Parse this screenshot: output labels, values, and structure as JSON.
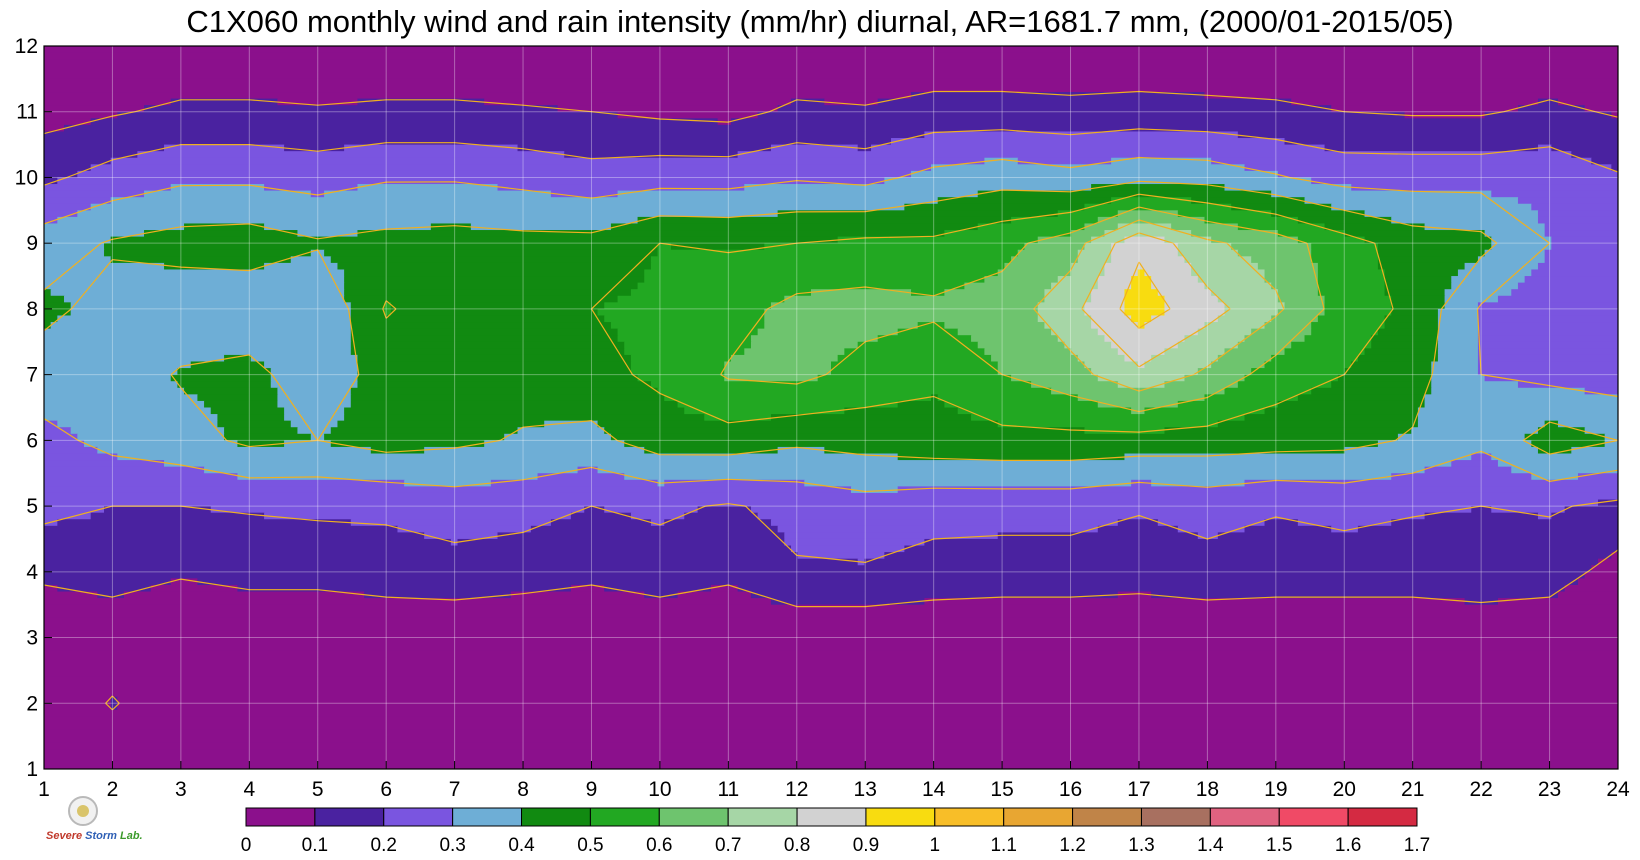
{
  "chart_data": {
    "type": "heatmap",
    "title": "C1X060 monthly wind and rain intensity (mm/hr) diurnal, AR=1681.7 mm, (2000/01-2015/05)",
    "x_ticks": [
      "1",
      "2",
      "3",
      "4",
      "5",
      "6",
      "7",
      "8",
      "9",
      "10",
      "11",
      "12",
      "13",
      "14",
      "15",
      "16",
      "17",
      "18",
      "19",
      "20",
      "21",
      "22",
      "23",
      "24"
    ],
    "y_ticks": [
      "1",
      "2",
      "3",
      "4",
      "5",
      "6",
      "7",
      "8",
      "9",
      "10",
      "11",
      "12"
    ],
    "xlim": [
      1,
      24
    ],
    "ylim": [
      1,
      12
    ],
    "grid": true,
    "contour_levels": [
      0,
      0.1,
      0.2,
      0.3,
      0.4,
      0.5,
      0.6,
      0.7,
      0.8,
      0.9,
      1,
      1.1,
      1.2,
      1.3,
      1.4,
      1.5,
      1.6,
      1.7
    ],
    "colorbar_labels": [
      "0",
      "0.1",
      "0.2",
      "0.3",
      "0.4",
      "0.5",
      "0.6",
      "0.7",
      "0.8",
      "0.9",
      "1",
      "1.1",
      "1.2",
      "1.3",
      "1.4",
      "1.5",
      "1.6",
      "1.7"
    ],
    "colorbar_colors": [
      "#8b108c",
      "#4a22a0",
      "#7a55e0",
      "#6eaed6",
      "#118a11",
      "#22a822",
      "#6ec46e",
      "#a6d6a6",
      "#d2d2d2",
      "#f8dc10",
      "#f8be28",
      "#e8a632",
      "#c08448",
      "#a87060",
      "#e06280",
      "#f04a66",
      "#d42a42"
    ],
    "contour_line_color": "#f0b020",
    "values": [
      [
        0.01,
        0.01,
        0.01,
        0.01,
        0.01,
        0.01,
        0.01,
        0.01,
        0.01,
        0.01,
        0.01,
        0.01,
        0.01,
        0.01,
        0.01,
        0.01,
        0.01,
        0.01,
        0.01,
        0.01,
        0.01,
        0.01,
        0.01,
        0.01
      ],
      [
        0.01,
        0.11,
        0.01,
        0.01,
        0.01,
        0.01,
        0.01,
        0.01,
        0.01,
        0.01,
        0.01,
        0.01,
        0.01,
        0.01,
        0.01,
        0.01,
        0.01,
        0.01,
        0.01,
        0.01,
        0.01,
        0.01,
        0.01,
        0.01
      ],
      [
        0.02,
        0.02,
        0.02,
        0.02,
        0.02,
        0.02,
        0.02,
        0.02,
        0.02,
        0.02,
        0.02,
        0.02,
        0.02,
        0.02,
        0.02,
        0.02,
        0.02,
        0.02,
        0.02,
        0.02,
        0.02,
        0.02,
        0.02,
        0.02
      ],
      [
        0.12,
        0.15,
        0.11,
        0.13,
        0.13,
        0.15,
        0.16,
        0.14,
        0.12,
        0.15,
        0.12,
        0.19,
        0.19,
        0.16,
        0.15,
        0.15,
        0.14,
        0.16,
        0.15,
        0.15,
        0.15,
        0.17,
        0.15,
        0.06
      ],
      [
        0.23,
        0.2,
        0.2,
        0.21,
        0.22,
        0.22,
        0.25,
        0.24,
        0.2,
        0.22,
        0.19,
        0.23,
        0.26,
        0.24,
        0.24,
        0.24,
        0.21,
        0.24,
        0.21,
        0.23,
        0.21,
        0.2,
        0.21,
        0.18
      ],
      [
        0.27,
        0.33,
        0.36,
        0.42,
        0.4,
        0.44,
        0.42,
        0.39,
        0.37,
        0.45,
        0.46,
        0.42,
        0.44,
        0.46,
        0.47,
        0.47,
        0.46,
        0.45,
        0.44,
        0.43,
        0.39,
        0.32,
        0.45,
        0.4
      ],
      [
        0.36,
        0.34,
        0.41,
        0.43,
        0.34,
        0.44,
        0.48,
        0.44,
        0.47,
        0.52,
        0.61,
        0.63,
        0.56,
        0.52,
        0.6,
        0.66,
        0.78,
        0.68,
        0.55,
        0.5,
        0.44,
        0.3,
        0.27,
        0.25
      ],
      [
        0.42,
        0.37,
        0.33,
        0.33,
        0.31,
        0.51,
        0.44,
        0.47,
        0.5,
        0.52,
        0.56,
        0.63,
        0.64,
        0.62,
        0.64,
        0.77,
        0.95,
        0.84,
        0.72,
        0.55,
        0.48,
        0.29,
        0.25,
        0.24
      ],
      [
        0.35,
        0.41,
        0.44,
        0.45,
        0.41,
        0.43,
        0.44,
        0.43,
        0.43,
        0.5,
        0.49,
        0.5,
        0.52,
        0.52,
        0.57,
        0.65,
        0.88,
        0.72,
        0.65,
        0.54,
        0.45,
        0.43,
        0.3,
        0.29
      ],
      [
        0.18,
        0.24,
        0.28,
        0.28,
        0.26,
        0.29,
        0.29,
        0.27,
        0.24,
        0.26,
        0.26,
        0.29,
        0.27,
        0.33,
        0.36,
        0.33,
        0.37,
        0.36,
        0.31,
        0.26,
        0.26,
        0.26,
        0.27,
        0.21
      ],
      [
        0.06,
        0.09,
        0.12,
        0.12,
        0.11,
        0.12,
        0.12,
        0.11,
        0.1,
        0.08,
        0.07,
        0.12,
        0.11,
        0.14,
        0.14,
        0.13,
        0.14,
        0.13,
        0.12,
        0.1,
        0.09,
        0.09,
        0.12,
        0.09
      ],
      [
        0.01,
        0.01,
        0.01,
        0.01,
        0.01,
        0.01,
        0.01,
        0.01,
        0.01,
        0.01,
        0.01,
        0.01,
        0.01,
        0.01,
        0.01,
        0.01,
        0.01,
        0.01,
        0.01,
        0.01,
        0.01,
        0.01,
        0.01,
        0.01
      ]
    ]
  },
  "logo": {
    "seal_icon": "university-seal-icon",
    "text_part1": "Severe",
    "text_part2": "Storm",
    "text_part3": "Lab."
  }
}
